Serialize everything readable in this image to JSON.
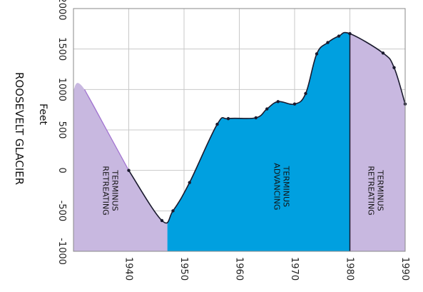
{
  "chart_data": {
    "type": "area",
    "title": "",
    "ylabel": "ROOSEVELT GLACIER",
    "yunit": "Feet",
    "xlabel": "",
    "xlim": [
      1930,
      1990
    ],
    "ylim": [
      -1000,
      2000
    ],
    "xticks": [
      1940,
      1950,
      1960,
      1970,
      1980,
      1990
    ],
    "yticks": [
      2000,
      1500,
      1000,
      500,
      0,
      -500,
      -1000
    ],
    "grid": true,
    "series": [
      {
        "values": [
          {
            "x": 1930,
            "y": 1000
          },
          {
            "x": 1932,
            "y": 1000
          },
          {
            "x": 1940,
            "y": 0
          },
          {
            "x": 1946,
            "y": -620
          },
          {
            "x": 1948,
            "y": -500
          },
          {
            "x": 1951,
            "y": -150
          },
          {
            "x": 1956,
            "y": 570
          },
          {
            "x": 1958,
            "y": 640
          },
          {
            "x": 1963,
            "y": 650
          },
          {
            "x": 1965,
            "y": 760
          },
          {
            "x": 1967,
            "y": 850
          },
          {
            "x": 1970,
            "y": 820
          },
          {
            "x": 1972,
            "y": 950
          },
          {
            "x": 1974,
            "y": 1440
          },
          {
            "x": 1976,
            "y": 1580
          },
          {
            "x": 1978,
            "y": 1660
          },
          {
            "x": 1980,
            "y": 1690
          },
          {
            "x": 1986,
            "y": 1450
          },
          {
            "x": 1988,
            "y": 1270
          },
          {
            "x": 1990,
            "y": 820
          }
        ]
      }
    ],
    "regions": [
      {
        "from": 1930,
        "to": 1947,
        "label": "TERMINUS RETREATING",
        "color": "#c8b8e0"
      },
      {
        "from": 1947,
        "to": 1980,
        "label": "TERMINUS ADVANCING",
        "color": "#00a0e0"
      },
      {
        "from": 1980,
        "to": 1990,
        "label": "TERMINUS RETREATING",
        "color": "#c8b8e0"
      }
    ],
    "annotations": [
      {
        "lines": [
          "TERMINUS",
          "RETREATING"
        ],
        "x": 1937,
        "y": -250
      },
      {
        "lines": [
          "TERMINUS",
          "ADVANCING"
        ],
        "x": 1968,
        "y": -200
      },
      {
        "lines": [
          "TERMINUS",
          "RETREATING"
        ],
        "x": 1985,
        "y": -250
      }
    ],
    "colors": {
      "line": "#1a1a2e",
      "marker": "#1a1a2e",
      "grid": "#c8c8c8",
      "axis": "#888888",
      "purple_edge": "#a070d0"
    }
  }
}
